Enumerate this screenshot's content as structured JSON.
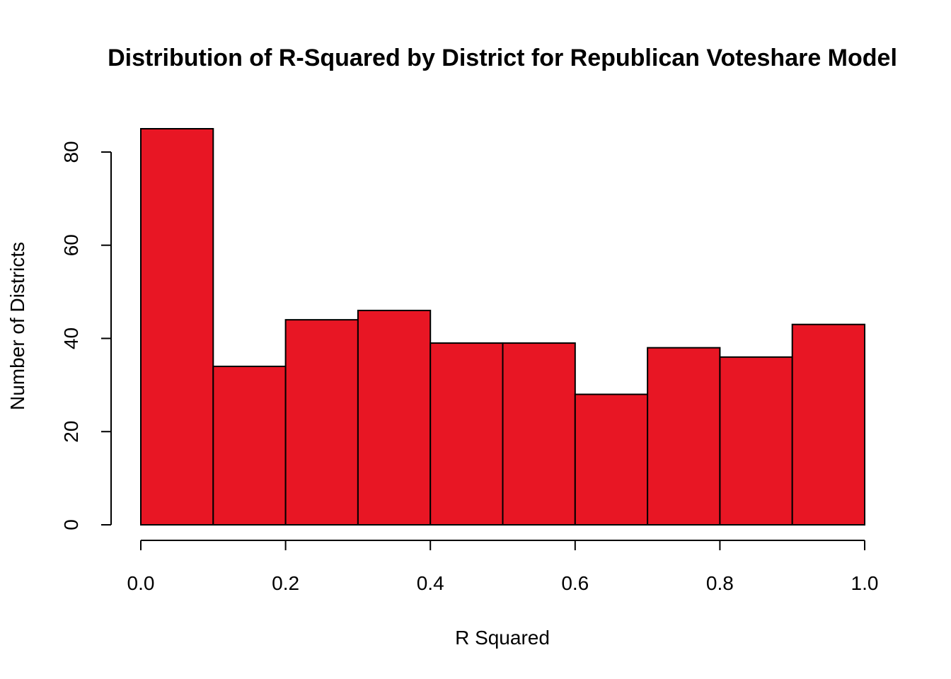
{
  "chart_data": {
    "type": "bar",
    "subtype": "histogram",
    "title": "Distribution of R-Squared by District for Republican Voteshare Model",
    "xlabel": "R Squared",
    "ylabel": "Number of Districts",
    "bin_edges": [
      0.0,
      0.1,
      0.2,
      0.3,
      0.4,
      0.5,
      0.6,
      0.7,
      0.8,
      0.9,
      1.0
    ],
    "values": [
      85,
      34,
      44,
      46,
      39,
      39,
      28,
      38,
      36,
      43
    ],
    "xlim": [
      0.0,
      1.0
    ],
    "ylim": [
      0,
      85
    ],
    "x_ticks": [
      0.0,
      0.2,
      0.4,
      0.6,
      0.8,
      1.0
    ],
    "x_tick_labels": [
      "0.0",
      "0.2",
      "0.4",
      "0.6",
      "0.8",
      "1.0"
    ],
    "y_ticks": [
      0,
      20,
      40,
      60,
      80
    ],
    "y_tick_labels": [
      "0",
      "20",
      "40",
      "60",
      "80"
    ],
    "bar_color": "#e81624",
    "grid": false,
    "legend": "none"
  }
}
